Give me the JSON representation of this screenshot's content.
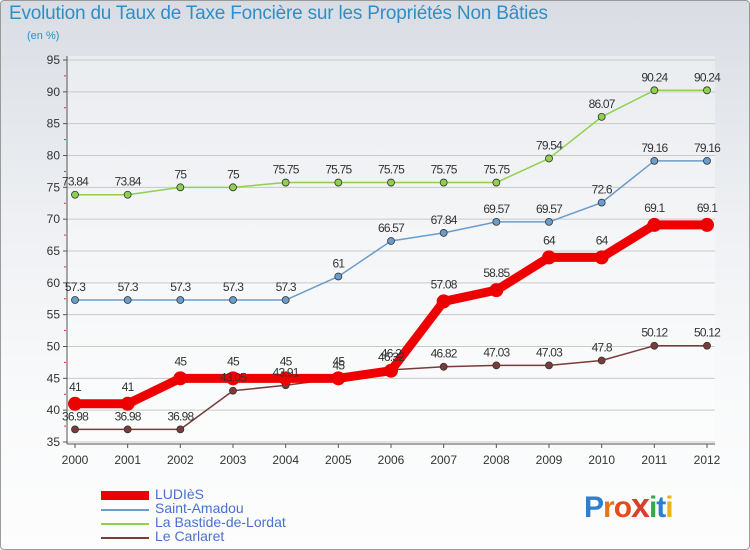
{
  "header": {
    "title": "Evolution du Taux de Taxe Foncière sur les Propriétés Non Bâties",
    "subtitle": "(en %)"
  },
  "logo": {
    "text": "Proxiti"
  },
  "chart_data": {
    "type": "line",
    "title": "Evolution du Taux de Taxe Foncière sur les Propriétés Non Bâties",
    "ylabel": "(en %)",
    "xlabel": "",
    "x": [
      "2000",
      "2001",
      "2002",
      "2003",
      "2004",
      "2005",
      "2006",
      "2007",
      "2008",
      "2009",
      "2010",
      "2011",
      "2012"
    ],
    "ylim": [
      35,
      95
    ],
    "yticks": [
      35,
      40,
      45,
      50,
      55,
      60,
      65,
      70,
      75,
      80,
      85,
      90,
      95
    ],
    "grid": "horizontal",
    "legend_position": "bottom-left",
    "series": [
      {
        "name": "LUDIèS",
        "color": "#ee0000",
        "line_width": 9,
        "marker_r": 7,
        "values": [
          41,
          41,
          45,
          45,
          45,
          45,
          46.2,
          57.08,
          58.85,
          64,
          64,
          69.1,
          69.1
        ],
        "labels": [
          "41",
          "41",
          "45",
          "45",
          "45",
          "45",
          "46.2",
          "57.08",
          "58.85",
          "64",
          "64",
          "69.1",
          "69.1"
        ]
      },
      {
        "name": "Saint-Amadou",
        "color": "#6a9dcc",
        "line_width": 1.5,
        "marker_r": 3.5,
        "values": [
          57.3,
          57.3,
          57.3,
          57.3,
          57.3,
          61,
          66.57,
          67.84,
          69.57,
          69.57,
          72.6,
          79.16,
          79.16
        ],
        "labels": [
          "57.3",
          "57.3",
          "57.3",
          "57.3",
          "57.3",
          "61",
          "66.57",
          "67.84",
          "69.57",
          "69.57",
          "72.6",
          "79.16",
          "79.16"
        ]
      },
      {
        "name": "La Bastide-de-Lordat",
        "color": "#8fd14f",
        "line_width": 1.5,
        "marker_r": 3.5,
        "values": [
          73.84,
          73.84,
          75,
          75,
          75.75,
          75.75,
          75.75,
          75.75,
          75.75,
          79.54,
          86.07,
          90.24,
          90.24
        ],
        "labels": [
          "73.84",
          "73.84",
          "75",
          "75",
          "75.75",
          "75.75",
          "75.75",
          "75.75",
          "75.75",
          "79.54",
          "86.07",
          "90.24",
          "90.24"
        ]
      },
      {
        "name": "Le Carlaret",
        "color": "#7a3b3b",
        "line_width": 1.5,
        "marker_r": 3.5,
        "values": [
          36.98,
          36.98,
          36.98,
          43.05,
          43.91,
          45,
          46.32,
          46.82,
          47.03,
          47.03,
          47.8,
          50.12,
          50.12
        ],
        "labels": [
          "36.98",
          "36.98",
          "36.98",
          "43.05",
          "43.91",
          "45",
          "46.32",
          "46.82",
          "47.03",
          "47.03",
          "47.8",
          "50.12",
          "50.12"
        ]
      }
    ]
  }
}
